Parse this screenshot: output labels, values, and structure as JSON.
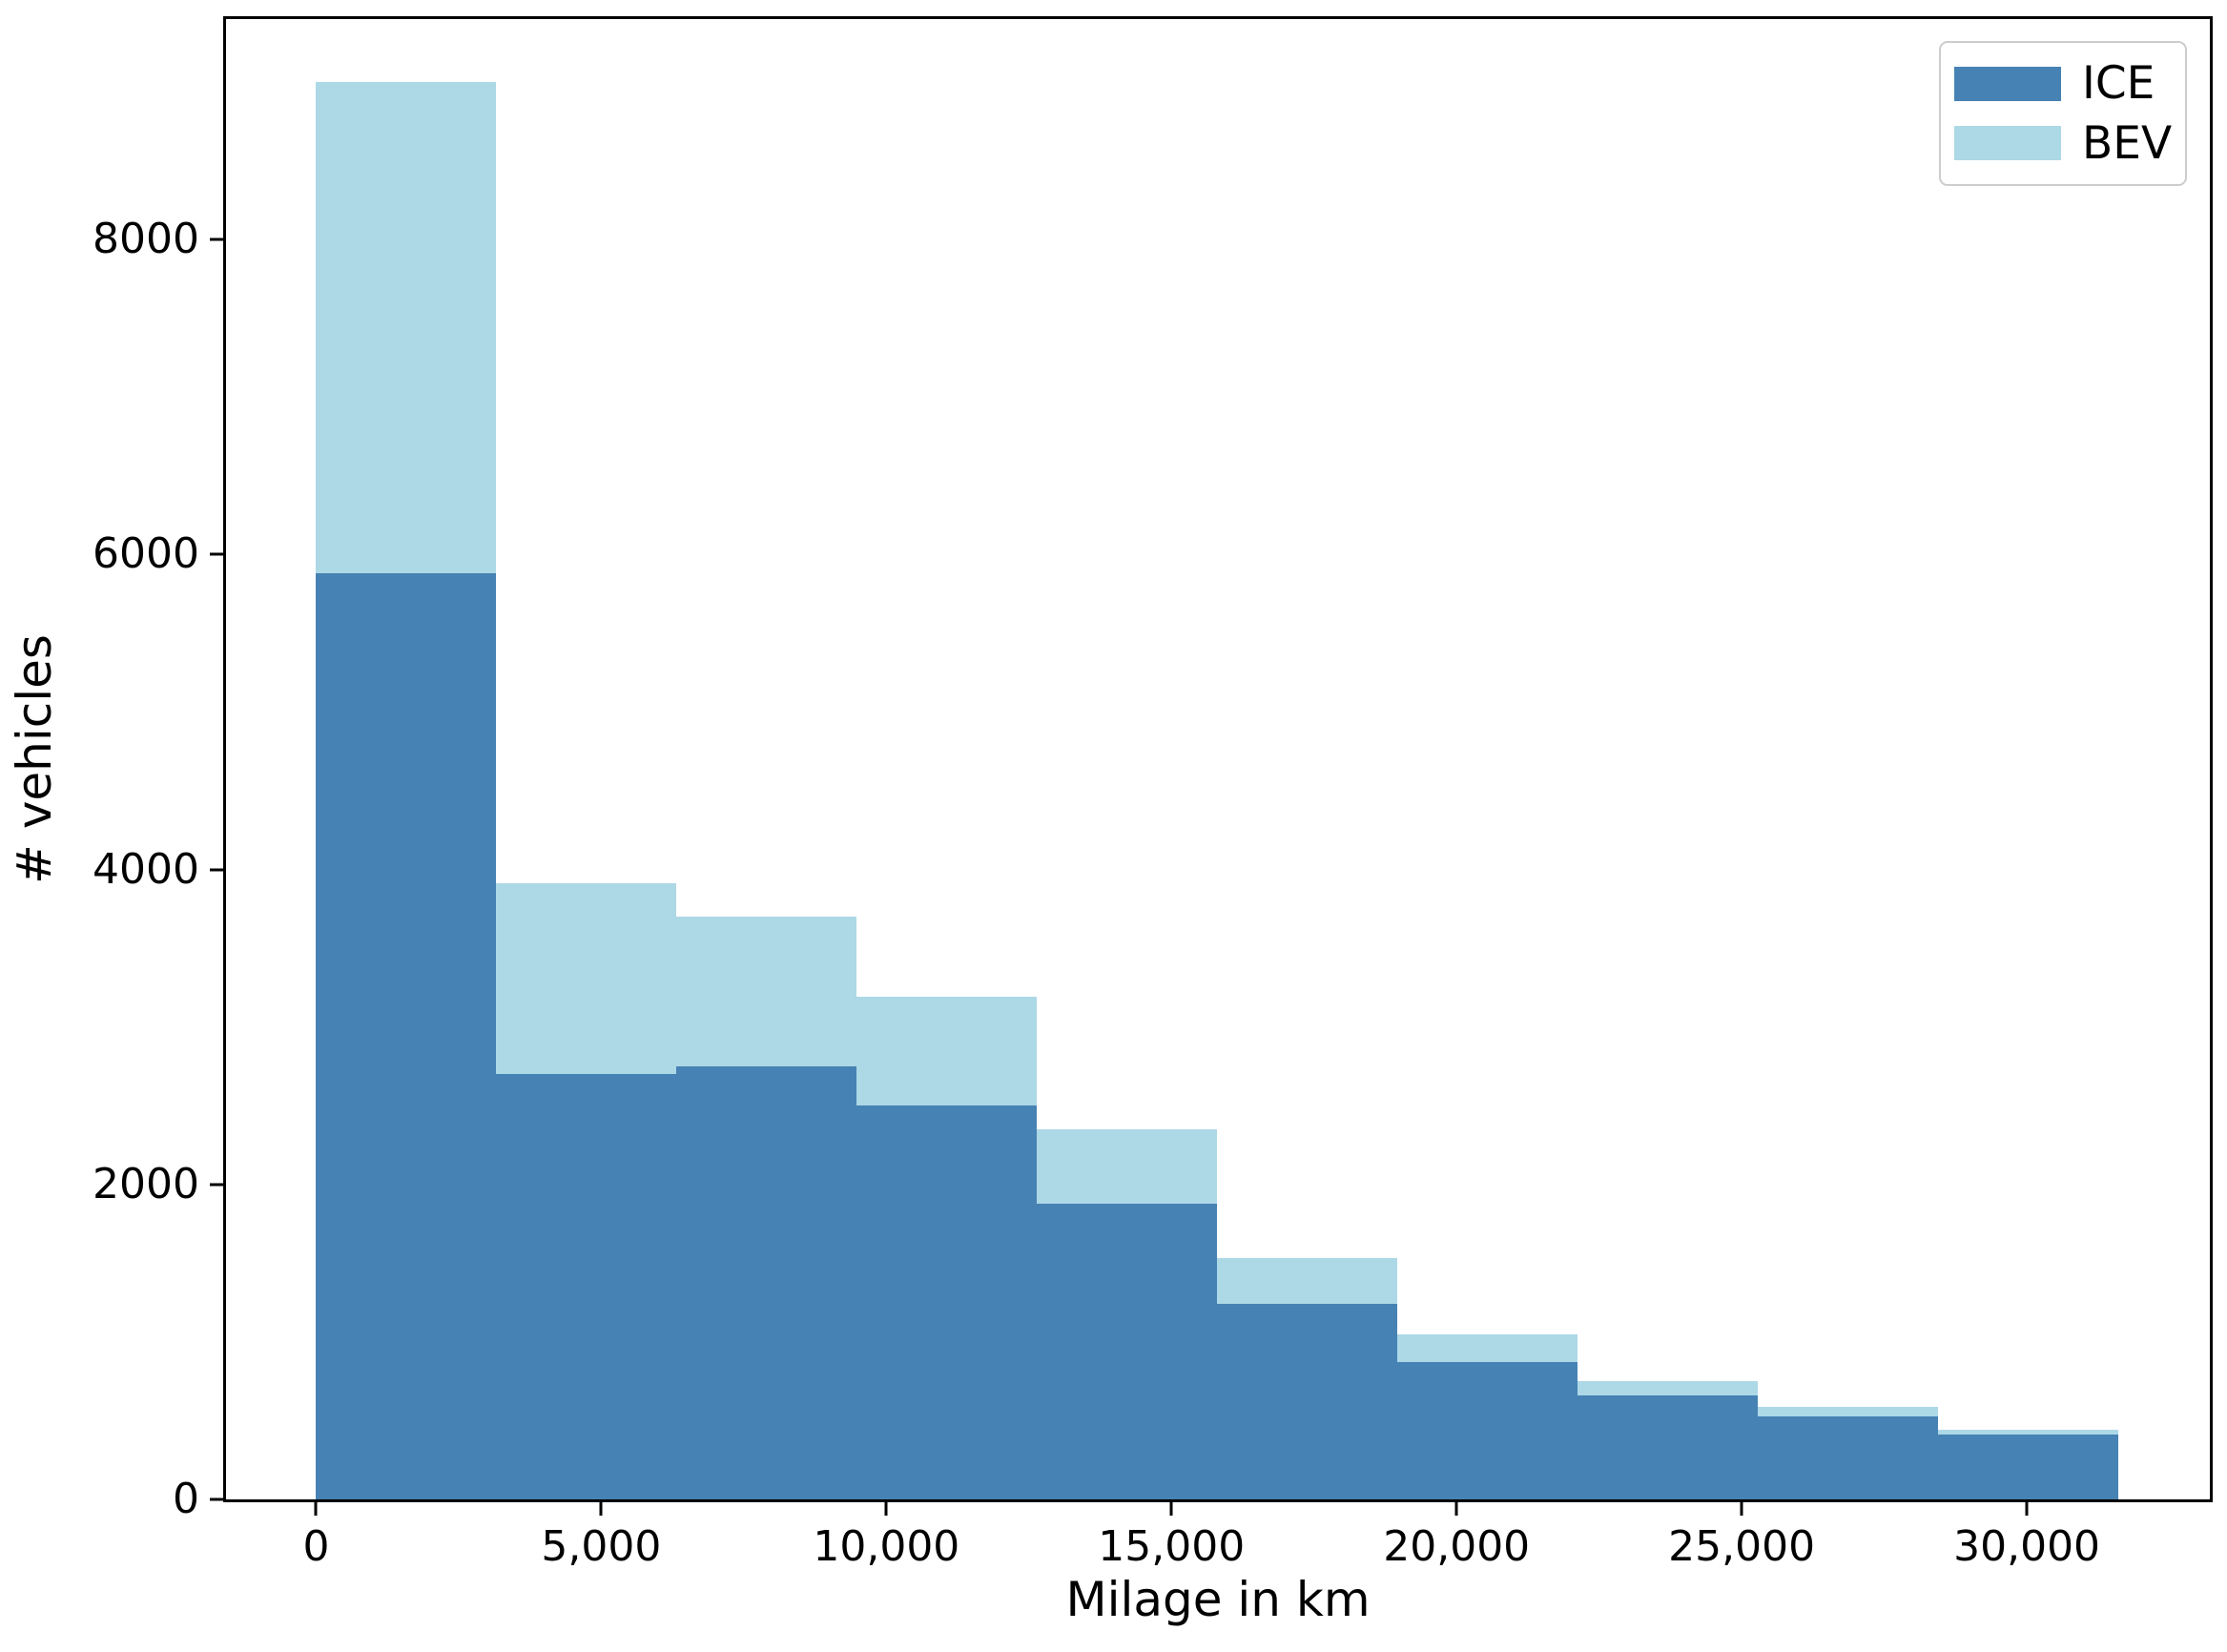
{
  "chart_data": {
    "type": "bar",
    "subtype": "stacked-histogram",
    "title": "",
    "xlabel": "Milage in km",
    "ylabel": "# vehicles",
    "stacked": true,
    "grid": false,
    "background_color": "#ffffff",
    "spine_color": "#000000",
    "bin_width_km": 3160,
    "bin_edges_km": [
      0,
      3160,
      6320,
      9480,
      12640,
      15800,
      18960,
      22120,
      25280,
      28440,
      31600
    ],
    "series": [
      {
        "name": "ICE",
        "color": "#4682b4",
        "values": [
          5880,
          2700,
          2750,
          2500,
          1880,
          1240,
          870,
          660,
          530,
          410
        ]
      },
      {
        "name": "BEV",
        "color": "#add8e6",
        "values": [
          3120,
          1210,
          950,
          690,
          470,
          290,
          180,
          90,
          60,
          35
        ]
      }
    ],
    "stacked_totals": [
      9000,
      3910,
      3700,
      3190,
      2350,
      1530,
      1050,
      750,
      590,
      445
    ],
    "xlim": [
      -1580,
      33210
    ],
    "ylim": [
      0,
      9400
    ],
    "x_ticks": [
      {
        "value": 0,
        "label": "0"
      },
      {
        "value": 5000,
        "label": "5,000"
      },
      {
        "value": 10000,
        "label": "10,000"
      },
      {
        "value": 15000,
        "label": "15,000"
      },
      {
        "value": 20000,
        "label": "20,000"
      },
      {
        "value": 25000,
        "label": "25,000"
      },
      {
        "value": 30000,
        "label": "30,000"
      }
    ],
    "y_ticks": [
      {
        "value": 0,
        "label": "0"
      },
      {
        "value": 2000,
        "label": "2000"
      },
      {
        "value": 4000,
        "label": "4000"
      },
      {
        "value": 6000,
        "label": "6000"
      },
      {
        "value": 8000,
        "label": "8000"
      }
    ],
    "legend": {
      "position": "upper-right",
      "entries": [
        "ICE",
        "BEV"
      ]
    }
  }
}
